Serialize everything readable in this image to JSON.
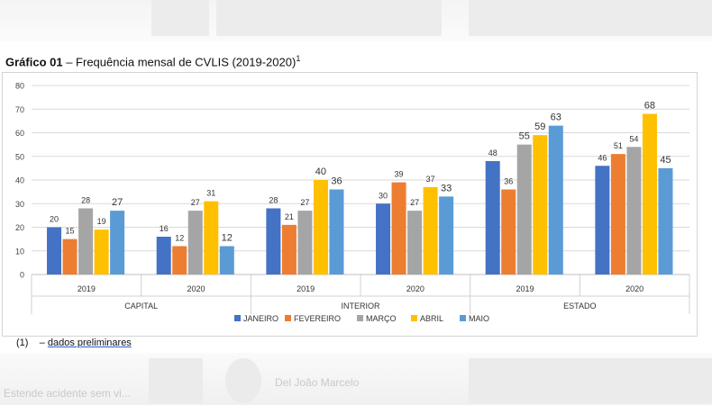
{
  "page": {
    "title_prefix": "Gráfico 01",
    "title_rest": " – Frequência mensal de CVLIS (2019-2020)",
    "title_sup": "1",
    "footnote_marker": "(1)",
    "footnote_dash": "– ",
    "footnote_text": "dados preliminares",
    "bg_text_1": "Estende acidente sem vi...",
    "bg_text_2": "Del João Marcelo"
  },
  "chart_data": {
    "type": "bar",
    "ylim": [
      0,
      80
    ],
    "yticks": [
      0,
      10,
      20,
      30,
      40,
      50,
      60,
      70,
      80
    ],
    "grid": true,
    "legend_position": "bottom",
    "groups": [
      {
        "region": "CAPITAL",
        "years": [
          "2019",
          "2020"
        ]
      },
      {
        "region": "INTERIOR",
        "years": [
          "2019",
          "2020"
        ]
      },
      {
        "region": "ESTADO",
        "years": [
          "2019",
          "2020"
        ]
      }
    ],
    "categories": [
      "CAPITAL 2019",
      "CAPITAL 2020",
      "INTERIOR 2019",
      "INTERIOR 2020",
      "ESTADO 2019",
      "ESTADO 2020"
    ],
    "series": [
      {
        "name": "JANEIRO",
        "color": "#4472c4",
        "values": [
          20,
          16,
          28,
          30,
          48,
          46
        ]
      },
      {
        "name": "FEVEREIRO",
        "color": "#ed7d31",
        "values": [
          15,
          12,
          21,
          39,
          36,
          51
        ]
      },
      {
        "name": "MARÇO",
        "color": "#a5a5a5",
        "values": [
          28,
          27,
          27,
          27,
          55,
          54
        ]
      },
      {
        "name": "ABRIL",
        "color": "#ffc000",
        "values": [
          19,
          31,
          40,
          37,
          59,
          68
        ]
      },
      {
        "name": "MAIO",
        "color": "#5b9bd5",
        "values": [
          27,
          12,
          36,
          33,
          63,
          45
        ]
      }
    ],
    "data_labels": true
  }
}
